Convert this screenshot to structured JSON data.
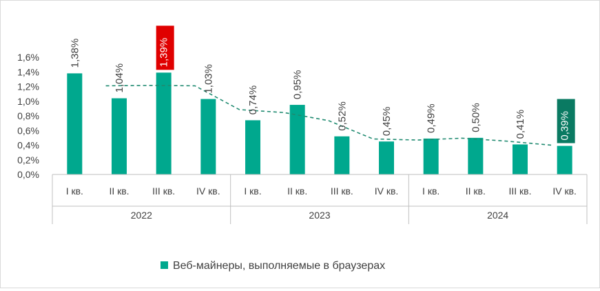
{
  "colors": {
    "bar": "#00a88e",
    "trend": "#1f8a70",
    "highlight_max": "#e00000",
    "highlight_min": "#0a7a62",
    "axis": "#bfbfbf",
    "text": "#404040"
  },
  "chart_data": {
    "type": "bar",
    "title": "",
    "xlabel": "",
    "ylabel": "",
    "ylim": [
      0,
      1.6
    ],
    "ytick_labels": [
      "0,0%",
      "0,2%",
      "0,4%",
      "0,6%",
      "0,8%",
      "1,0%",
      "1,2%",
      "1,4%",
      "1,6%"
    ],
    "grid": false,
    "legend_position": "bottom",
    "quarter_labels": [
      "I кв.",
      "II кв.",
      "III кв.",
      "IV кв.",
      "I кв.",
      "II кв.",
      "III кв.",
      "IV кв.",
      "I кв.",
      "II кв.",
      "III кв.",
      "IV кв."
    ],
    "year_groups": [
      "2022",
      "2023",
      "2024"
    ],
    "series": [
      {
        "name": "Веб-майнеры, выполняемые в браузерах",
        "values": [
          1.38,
          1.04,
          1.39,
          1.03,
          0.74,
          0.95,
          0.52,
          0.45,
          0.49,
          0.5,
          0.41,
          0.39
        ],
        "data_labels": [
          "1,38%",
          "1,04%",
          "1,39%",
          "1,03%",
          "0,74%",
          "0,95%",
          "0,52%",
          "0,45%",
          "0,49%",
          "0,50%",
          "0,41%",
          "0,39%"
        ]
      }
    ],
    "trendline": {
      "type": "moving-average",
      "period": 2,
      "style": "dashed"
    },
    "highlighted": {
      "max_index": 2,
      "min_index": 11
    }
  }
}
